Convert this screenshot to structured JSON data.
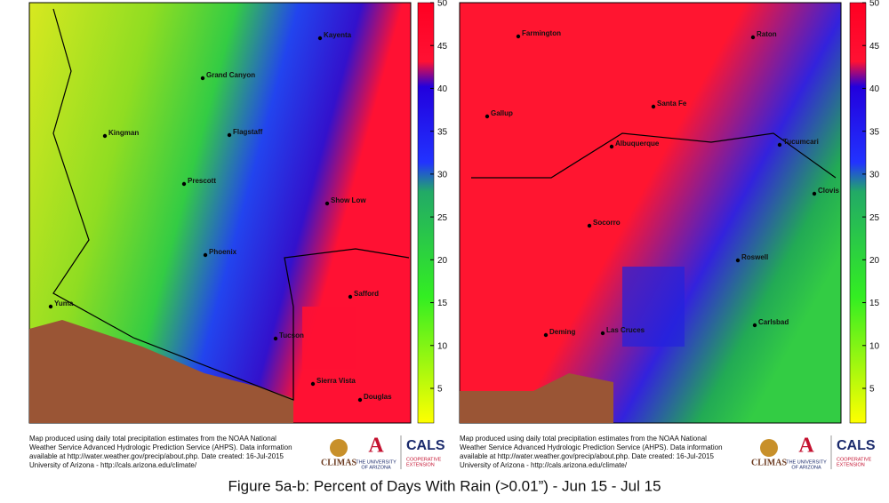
{
  "maps": [
    {
      "cities": [
        "Kayenta",
        "Grand Canyon",
        "Kingman",
        "Flagstaff",
        "Prescott",
        "Show Low",
        "Phoenix",
        "Safford",
        "Yuma",
        "Tucson",
        "Sierra Vista",
        "Douglas"
      ],
      "colorbar_ticks": [
        5,
        10,
        15,
        20,
        25,
        30,
        35,
        40,
        45,
        50
      ],
      "credit": [
        "Map produced using daily total precipitation estimates from the NOAA National",
        "Weather Service Advanced Hydrologic Prediction Service (AHPS). Data information",
        "available at http://water.weather.gov/precip/about.php. Date created: 16-Jul-2015",
        "University of Arizona - http://cals.arizona.edu/climate/"
      ],
      "logos": [
        "CLIMAS",
        "THE UNIVERSITY",
        "OF ARIZONA",
        "CALS",
        "COOPERATIVE",
        "EXTENSION"
      ]
    },
    {
      "cities": [
        "Farmington",
        "Raton",
        "Gallup",
        "Santa Fe",
        "Albuquerque",
        "Tucumcari",
        "Clovis",
        "Socorro",
        "Roswell",
        "Carlsbad",
        "Deming",
        "Las Cruces"
      ],
      "colorbar_ticks": [
        5,
        10,
        15,
        20,
        25,
        30,
        35,
        40,
        45,
        50
      ],
      "credit": [
        "Map produced using daily total precipitation estimates from the NOAA National",
        "Weather Service Advanced Hydrologic Prediction Service (AHPS). Data information",
        "available at http://water.weather.gov/precip/about.php. Date created: 16-Jul-2015",
        "University of Arizona - http://cals.arizona.edu/climate/"
      ],
      "logos": [
        "CLIMAS",
        "THE UNIVERSITY",
        "OF ARIZONA",
        "CALS",
        "COOPERATIVE",
        "EXTENSION"
      ]
    }
  ],
  "caption": "Figure 5a-b: Percent of Days With Rain (>0.01”) - Jun 15 - Jul 15"
}
